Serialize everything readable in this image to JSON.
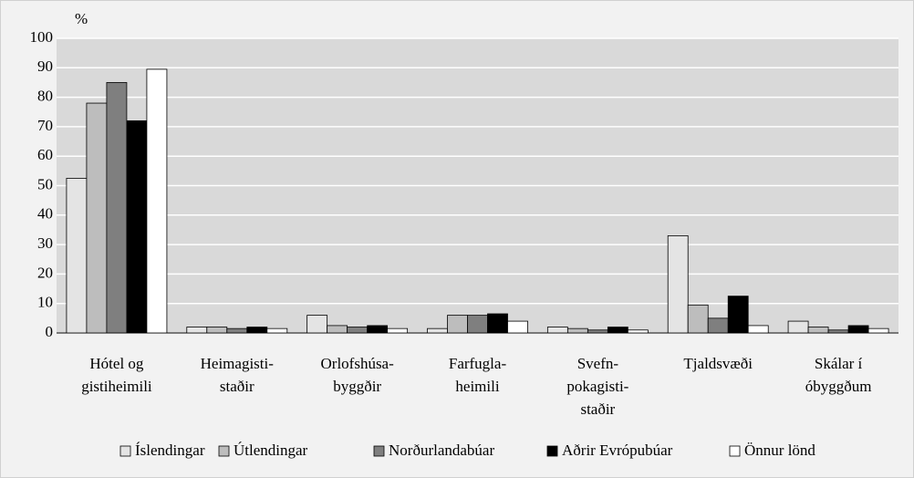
{
  "chart_data": {
    "type": "bar",
    "y_label": "%",
    "categories": [
      [
        "Hótel og",
        "gistiheimili"
      ],
      [
        "Heimagisti-",
        "staðir"
      ],
      [
        "Orlofshúsa-",
        "byggðir"
      ],
      [
        "Farfugla-",
        "heimili"
      ],
      [
        "Svefn-",
        "pokagisti-",
        "staðir"
      ],
      [
        "Tjaldsvæði"
      ],
      [
        "Skálar í",
        "óbyggðum"
      ]
    ],
    "series": [
      {
        "name": "Íslendingar",
        "color": "#e4e4e4",
        "values": [
          52.5,
          2,
          6,
          1.5,
          2,
          33,
          4
        ]
      },
      {
        "name": "Útlendingar",
        "color": "#bdbdbd",
        "values": [
          78,
          2,
          2.5,
          6,
          1.5,
          9.5,
          2
        ]
      },
      {
        "name": "Norðurlandabúar",
        "color": "#7f7f7f",
        "values": [
          85,
          1.5,
          2,
          6,
          1,
          5,
          1
        ]
      },
      {
        "name": "Aðrir Evrópubúar",
        "color": "#000000",
        "values": [
          72,
          2,
          2.5,
          6.5,
          2,
          12.5,
          2.5
        ]
      },
      {
        "name": "Önnur lönd",
        "color": "#ffffff",
        "values": [
          89.5,
          1.5,
          1.5,
          4,
          1,
          2.5,
          1.5
        ]
      }
    ],
    "ylim": [
      0,
      100
    ],
    "yticks": [
      0,
      10,
      20,
      30,
      40,
      50,
      60,
      70,
      80,
      90,
      100
    ],
    "grid": true,
    "legend": "bottom"
  }
}
